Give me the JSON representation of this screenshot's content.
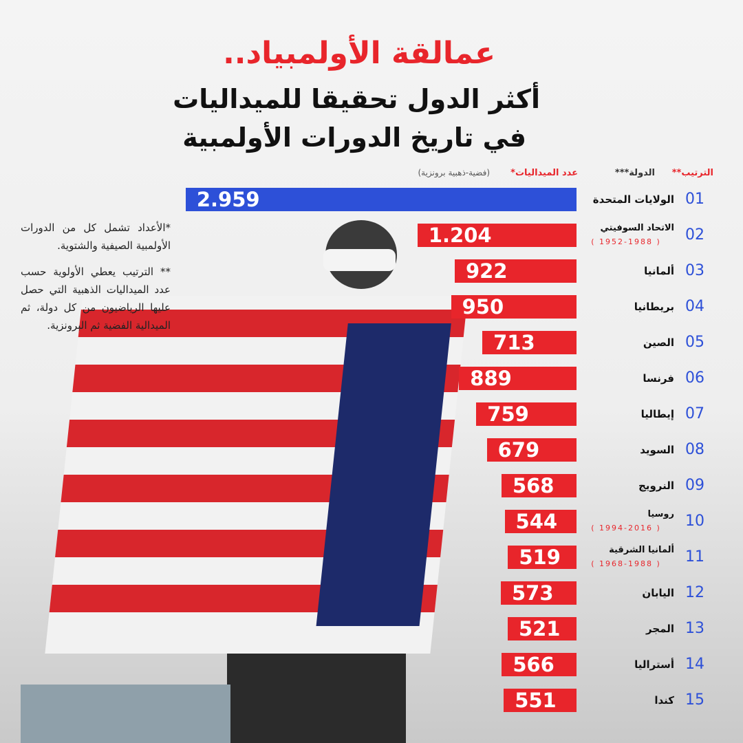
{
  "chart_data": {
    "type": "bar",
    "orientation": "horizontal",
    "title": "عمالقة الأولمبياد..",
    "subtitle": [
      "أكثر الدول تحقيقا للميداليات",
      "في تاريخ الدورات الأولمبية"
    ],
    "header_rank": "الترتيب**",
    "header_country": "الدولة***",
    "header_value": "عدد الميداليات*",
    "header_value_note": "(فضية-ذهبية برونزية)",
    "ranks": [
      "01",
      "02",
      "03",
      "04",
      "05",
      "06",
      "07",
      "08",
      "09",
      "10",
      "11",
      "12",
      "13",
      "14",
      "15"
    ],
    "categories": [
      "الولايات المتحدة",
      "الاتحاد السوفيتي",
      "ألمانيا",
      "بريطانيا",
      "الصين",
      "فرنسا",
      "إيطاليا",
      "السويد",
      "النرويج",
      "روسيا",
      "ألمانيا الشرقية",
      "اليابان",
      "المجر",
      "أستراليا",
      "كندا"
    ],
    "category_notes": [
      null,
      "( 1952-1988 )",
      null,
      null,
      null,
      null,
      null,
      null,
      null,
      "( 1994-2016 )",
      "( 1968-1988 )",
      null,
      null,
      null,
      null
    ],
    "values": [
      2959,
      1204,
      922,
      950,
      713,
      889,
      759,
      679,
      568,
      544,
      519,
      573,
      521,
      566,
      551
    ],
    "value_labels": [
      "2.959",
      "1.204",
      "922",
      "950",
      "713",
      "889",
      "759",
      "679",
      "568",
      "544",
      "519",
      "573",
      "521",
      "566",
      "551"
    ],
    "colors": [
      "#2d50d8",
      "#e8252b",
      "#e8252b",
      "#e8252b",
      "#e8252b",
      "#e8252b",
      "#e8252b",
      "#e8252b",
      "#e8252b",
      "#e8252b",
      "#e8252b",
      "#e8252b",
      "#e8252b",
      "#e8252b",
      "#e8252b"
    ],
    "xlim": [
      0,
      3000
    ],
    "notes": [
      "*الأعداد تشمل كل من الدورات الأولمبية الصيفية والشتوية.",
      "** الترتيب يعطي الأولوية حسب عدد الميداليات الذهبية التي حصل عليها الرياضيون من كل دولة، ثم الميدالية الفضية ثم البرونزية."
    ]
  }
}
